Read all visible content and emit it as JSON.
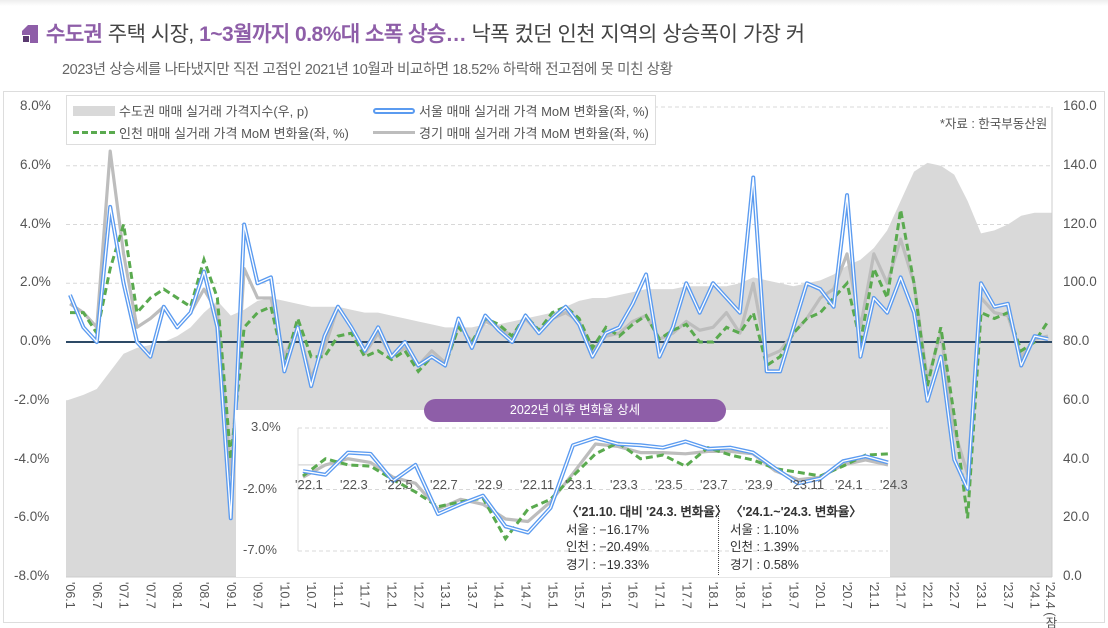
{
  "header": {
    "title_highlight_1": "수도권",
    "title_part_1": " 주택 시장, ",
    "title_highlight_2": "1~3월까지 0.8%대 소폭 상승…",
    "title_part_2": " 낙폭 컸던 인천 지역의 상승폭이 가장 커",
    "subtitle": "2023년 상승세를 나타냈지만 직전 고점인 2021년 10월과 비교하면 18.52% 하락해 전고점에 못 미친 상황"
  },
  "colors": {
    "accent": "#8e5ea8",
    "seoul": "#5b9bf0",
    "incheon": "#5aaa4f",
    "gyeonggi": "#bdbdbd",
    "index_area": "#d9d9d9",
    "zero_line": "#2d4a66"
  },
  "chart_data": [
    {
      "type": "line+area",
      "source_note": "*자료 : 한국부동산원",
      "legend": [
        "수도권 매매 실거래 가격지수(우, p)",
        "서울 매매 실거래 가격 MoM 변화율(좌, %)",
        "인천 매매 실거래 가격 MoM 변화율(좌, %)",
        "경기 매매 실거래 가격 MoM 변화율(좌, %)"
      ],
      "legend_placement": "top-left",
      "y_left_ticks": [
        "8.0%",
        "6.0%",
        "4.0%",
        "2.0%",
        "0.0%",
        "-2.0%",
        "-4.0%",
        "-6.0%",
        "-8.0%"
      ],
      "y_left_range": [
        -8,
        8
      ],
      "y_right_ticks": [
        "160.0",
        "140.0",
        "120.0",
        "100.0",
        "80.0",
        "60.0",
        "40.0",
        "20.0",
        "0.0"
      ],
      "y_right_range": [
        0,
        160
      ],
      "x_ticks": [
        "'06.1",
        "'06.7",
        "'07.1",
        "'07.7",
        "'08.1",
        "'08.7",
        "'09.1",
        "'09.7",
        "'10.1",
        "'10.7",
        "'11.1",
        "'11.7",
        "'12.1",
        "'12.7",
        "'13.1",
        "'13.7",
        "'14.1",
        "'14.7",
        "'15.1",
        "'15.7",
        "'16.1",
        "'16.7",
        "'17.1",
        "'17.7",
        "'18.1",
        "'18.7",
        "'19.1",
        "'19.7",
        "'20.1",
        "'20.7",
        "'21.1",
        "'21.7",
        "'22.1",
        "'22.7",
        "'23.1",
        "'23.7",
        "'24.1",
        "'24.4 (잠정)"
      ],
      "x_start": "2006-01",
      "x_end": "2024-04",
      "x_sampling": "quarterly (Jan, Apr, Jul, Oct)",
      "grid": "horizontal dashed",
      "series": [
        {
          "name": "수도권 매매 실거래 가격지수(우, p)",
          "axis": "right",
          "type": "area",
          "values": [
            60,
            62,
            64,
            70,
            76,
            78,
            79,
            80,
            82,
            85,
            90,
            94,
            89,
            91,
            94,
            95,
            94,
            93,
            92,
            92,
            92,
            91,
            90,
            90,
            89,
            88,
            87,
            86,
            85,
            85,
            85,
            86,
            86,
            87,
            88,
            89,
            90,
            92,
            94,
            95,
            95,
            96,
            97,
            98,
            98,
            98,
            99,
            99,
            99,
            99,
            100,
            102,
            101,
            100,
            99,
            100,
            101,
            103,
            106,
            108,
            112,
            118,
            128,
            138,
            141,
            140,
            137,
            128,
            117,
            118,
            120,
            123,
            124,
            124
          ]
        },
        {
          "name": "서울 매매 실거래 가격 MoM 변화율(좌, %)",
          "axis": "left",
          "type": "line",
          "values": [
            1.6,
            0.5,
            0.0,
            4.6,
            2.0,
            0.0,
            -0.5,
            1.2,
            0.5,
            1.0,
            2.4,
            0.5,
            -6.0,
            4.0,
            2.0,
            2.2,
            -1.0,
            0.5,
            -1.5,
            0.2,
            1.2,
            0.5,
            -0.3,
            0.5,
            -0.5,
            0.0,
            -0.8,
            -0.5,
            -0.8,
            0.8,
            -0.2,
            0.9,
            0.4,
            0.0,
            0.9,
            0.3,
            0.8,
            1.2,
            0.6,
            -0.5,
            0.3,
            0.5,
            1.3,
            2.3,
            -0.5,
            0.5,
            2.0,
            1.0,
            2.0,
            1.5,
            1.0,
            5.6,
            -1.0,
            -1.0,
            0.5,
            2.0,
            1.8,
            1.2,
            5.0,
            -0.5,
            1.5,
            1.0,
            2.2,
            1.0,
            -2.0,
            -0.5,
            -4.0,
            -5.0,
            2.0,
            1.2,
            1.3,
            -0.8,
            0.2,
            0.1
          ]
        },
        {
          "name": "인천 매매 실거래 가격 MoM 변화율(좌, %)",
          "axis": "left",
          "type": "line",
          "values": [
            1.0,
            1.0,
            0.3,
            2.5,
            4.0,
            1.0,
            1.5,
            1.8,
            1.5,
            1.2,
            2.8,
            1.5,
            -4.0,
            0.5,
            1.0,
            1.2,
            -0.8,
            0.8,
            -0.5,
            -0.5,
            0.2,
            0.3,
            -0.5,
            -0.3,
            -0.6,
            -0.3,
            -1.0,
            -0.5,
            -0.8,
            0.5,
            0.0,
            0.8,
            0.6,
            0.2,
            0.9,
            0.4,
            1.0,
            1.2,
            0.8,
            -0.2,
            0.5,
            0.2,
            0.6,
            0.9,
            0.1,
            0.4,
            0.6,
            0.0,
            0.0,
            0.5,
            0.3,
            1.0,
            -0.8,
            -0.5,
            0.3,
            0.8,
            1.0,
            1.5,
            2.0,
            0.0,
            2.5,
            1.5,
            4.5,
            2.0,
            -1.5,
            0.5,
            -2.5,
            -6.0,
            1.0,
            0.8,
            1.0,
            -0.3,
            0.0,
            0.7
          ]
        },
        {
          "name": "경기 매매 실거래 가격 MoM 변화율(좌, %)",
          "axis": "left",
          "type": "line",
          "values": [
            1.3,
            1.0,
            0.5,
            6.5,
            3.0,
            0.5,
            0.8,
            1.2,
            0.5,
            1.0,
            1.8,
            1.0,
            -4.5,
            2.5,
            1.5,
            1.5,
            -0.5,
            0.5,
            -1.2,
            -0.2,
            1.2,
            0.5,
            -0.4,
            0.3,
            -0.5,
            -0.2,
            -0.8,
            -0.3,
            -0.7,
            0.6,
            0.0,
            0.7,
            0.5,
            0.2,
            0.8,
            0.3,
            0.8,
            1.0,
            0.7,
            -0.3,
            0.2,
            0.3,
            0.7,
            0.9,
            0.1,
            0.3,
            0.7,
            0.4,
            0.5,
            1.0,
            0.3,
            2.0,
            -0.5,
            -0.3,
            0.3,
            0.8,
            1.5,
            1.8,
            3.0,
            0.5,
            3.0,
            2.0,
            3.5,
            2.0,
            -1.3,
            0.3,
            -3.0,
            -4.5,
            1.5,
            1.0,
            0.9,
            -0.5,
            0.1,
            0.2
          ]
        }
      ]
    },
    {
      "type": "line",
      "title": "2022년 이후 변화율 상세",
      "y_ticks": [
        "3.0%",
        "-2.0%",
        "-7.0%"
      ],
      "y_range": [
        -7,
        3
      ],
      "categories": [
        "'22.1",
        "'22.2",
        "'22.3",
        "'22.4",
        "'22.5",
        "'22.6",
        "'22.7",
        "'22.8",
        "'22.9",
        "'22.10",
        "'22.11",
        "'22.12",
        "'23.1",
        "'23.2",
        "'23.3",
        "'23.4",
        "'23.5",
        "'23.6",
        "'23.7",
        "'23.8",
        "'23.9",
        "'23.10",
        "'23.11",
        "'23.12",
        "'24.1",
        "'24.2",
        "'24.3"
      ],
      "x_tick_labels": [
        "'22.1",
        "'22.3",
        "'22.5",
        "'22.7",
        "'22.9",
        "'22.11",
        "'23.1",
        "'23.3",
        "'23.5",
        "'23.7",
        "'23.9",
        "'23.11",
        "'24.1",
        "'24.3"
      ],
      "series": [
        {
          "key": "seoul",
          "values": [
            -0.5,
            -0.8,
            1.0,
            0.9,
            -1.3,
            0.0,
            -4.0,
            -3.2,
            -2.5,
            -5.0,
            -5.5,
            -3.5,
            1.6,
            2.2,
            1.7,
            1.6,
            1.4,
            1.9,
            1.3,
            1.4,
            1.0,
            -0.3,
            -1.5,
            -1.1,
            0.3,
            0.7,
            0.2
          ]
        },
        {
          "key": "incheon",
          "values": [
            -0.9,
            0.5,
            0.0,
            -0.1,
            -1.2,
            -2.2,
            -3.4,
            -3.0,
            -2.7,
            -6.0,
            -3.6,
            -2.8,
            -0.9,
            0.9,
            1.8,
            0.5,
            0.8,
            -0.1,
            1.4,
            0.8,
            0.4,
            -0.3,
            -0.6,
            -0.9,
            -0.1,
            0.8,
            0.9
          ]
        },
        {
          "key": "gyeonggi",
          "values": [
            -1.0,
            0.0,
            0.5,
            0.2,
            -1.0,
            -1.5,
            -3.6,
            -2.8,
            -3.2,
            -4.4,
            -4.6,
            -3.0,
            -0.7,
            1.7,
            1.5,
            1.0,
            1.0,
            0.9,
            1.1,
            1.1,
            0.9,
            -0.5,
            -1.2,
            -1.0,
            0.0,
            0.4,
            0.0
          ]
        }
      ],
      "annotations": {
        "box1": {
          "heading": "〈'21.10. 대비 '24.3. 변화율〉",
          "lines": [
            "서울 : −16.17%",
            "인천 : −20.49%",
            "경기 : −19.33%"
          ]
        },
        "box2": {
          "heading": "〈'24.1.~'24.3. 변화율〉",
          "lines": [
            "서울 : 1.10%",
            "인천 : 1.39%",
            "경기 : 0.58%"
          ]
        }
      }
    }
  ]
}
